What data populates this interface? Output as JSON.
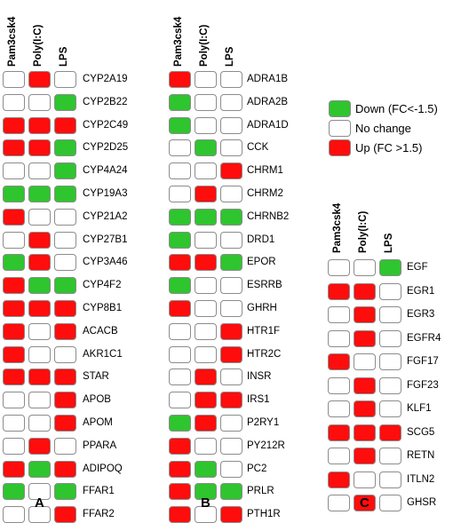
{
  "colors": {
    "down": "#2ec52e",
    "none": "#ffffff",
    "up": "#ff0d0d"
  },
  "legend": [
    {
      "state": "down",
      "label": "Down (FC<-1.5)"
    },
    {
      "state": "none",
      "label": "No change"
    },
    {
      "state": "up",
      "label": "Up (FC >1.5)"
    }
  ],
  "panels": [
    {
      "label": "A",
      "columns": [
        "Pam3csk4",
        "Poly(I:C)",
        "LPS"
      ],
      "rows": [
        {
          "gene": "CYP2A19",
          "states": [
            "none",
            "up",
            "none"
          ]
        },
        {
          "gene": "CYP2B22",
          "states": [
            "none",
            "none",
            "down"
          ]
        },
        {
          "gene": "CYP2C49",
          "states": [
            "up",
            "up",
            "up"
          ]
        },
        {
          "gene": "CYP2D25",
          "states": [
            "up",
            "up",
            "down"
          ]
        },
        {
          "gene": "CYP4A24",
          "states": [
            "none",
            "none",
            "down"
          ]
        },
        {
          "gene": "CYP19A3",
          "states": [
            "down",
            "down",
            "down"
          ]
        },
        {
          "gene": "CYP21A2",
          "states": [
            "up",
            "none",
            "none"
          ]
        },
        {
          "gene": "CYP27B1",
          "states": [
            "none",
            "up",
            "none"
          ]
        },
        {
          "gene": "CYP3A46",
          "states": [
            "down",
            "up",
            "none"
          ]
        },
        {
          "gene": "CYP4F2",
          "states": [
            "up",
            "down",
            "down"
          ]
        },
        {
          "gene": "CYP8B1",
          "states": [
            "up",
            "up",
            "up"
          ]
        },
        {
          "gene": "ACACB",
          "states": [
            "up",
            "none",
            "up"
          ]
        },
        {
          "gene": "AKR1C1",
          "states": [
            "up",
            "none",
            "none"
          ]
        },
        {
          "gene": "STAR",
          "states": [
            "up",
            "up",
            "up"
          ]
        },
        {
          "gene": "APOB",
          "states": [
            "none",
            "none",
            "up"
          ]
        },
        {
          "gene": "APOM",
          "states": [
            "none",
            "none",
            "up"
          ]
        },
        {
          "gene": "PPARA",
          "states": [
            "none",
            "up",
            "none"
          ]
        },
        {
          "gene": "ADIPOQ",
          "states": [
            "up",
            "down",
            "up"
          ]
        },
        {
          "gene": "FFAR1",
          "states": [
            "down",
            "none",
            "down"
          ]
        },
        {
          "gene": "FFAR2",
          "states": [
            "none",
            "none",
            "up"
          ]
        }
      ]
    },
    {
      "label": "B",
      "columns": [
        "Pam3csk4",
        "Poly(I:C)",
        "LPS"
      ],
      "rows": [
        {
          "gene": "ADRA1B",
          "states": [
            "up",
            "none",
            "none"
          ]
        },
        {
          "gene": "ADRA2B",
          "states": [
            "down",
            "none",
            "none"
          ]
        },
        {
          "gene": "ADRA1D",
          "states": [
            "down",
            "none",
            "none"
          ]
        },
        {
          "gene": "CCK",
          "states": [
            "none",
            "down",
            "none"
          ]
        },
        {
          "gene": "CHRM1",
          "states": [
            "none",
            "none",
            "up"
          ]
        },
        {
          "gene": "CHRM2",
          "states": [
            "none",
            "up",
            "none"
          ]
        },
        {
          "gene": "CHRNB2",
          "states": [
            "down",
            "down",
            "down"
          ]
        },
        {
          "gene": "DRD1",
          "states": [
            "down",
            "none",
            "none"
          ]
        },
        {
          "gene": "EPOR",
          "states": [
            "up",
            "up",
            "down"
          ]
        },
        {
          "gene": "ESRRB",
          "states": [
            "down",
            "none",
            "none"
          ]
        },
        {
          "gene": "GHRH",
          "states": [
            "up",
            "none",
            "none"
          ]
        },
        {
          "gene": "HTR1F",
          "states": [
            "none",
            "none",
            "up"
          ]
        },
        {
          "gene": "HTR2C",
          "states": [
            "none",
            "none",
            "up"
          ]
        },
        {
          "gene": "INSR",
          "states": [
            "none",
            "up",
            "none"
          ]
        },
        {
          "gene": "IRS1",
          "states": [
            "none",
            "up",
            "up"
          ]
        },
        {
          "gene": "P2RY1",
          "states": [
            "down",
            "up",
            "none"
          ]
        },
        {
          "gene": "PY212R",
          "states": [
            "up",
            "none",
            "none"
          ]
        },
        {
          "gene": "PC2",
          "states": [
            "up",
            "down",
            "none"
          ]
        },
        {
          "gene": "PRLR",
          "states": [
            "up",
            "down",
            "down"
          ]
        },
        {
          "gene": "PTH1R",
          "states": [
            "up",
            "none",
            "up"
          ]
        }
      ]
    },
    {
      "label": "C",
      "columns": [
        "Pam3csk4",
        "Poly(I:C)",
        "LPS"
      ],
      "rows": [
        {
          "gene": "EGF",
          "states": [
            "none",
            "none",
            "down"
          ]
        },
        {
          "gene": "EGR1",
          "states": [
            "up",
            "up",
            "none"
          ]
        },
        {
          "gene": "EGR3",
          "states": [
            "none",
            "up",
            "none"
          ]
        },
        {
          "gene": "EGFR4",
          "states": [
            "none",
            "up",
            "none"
          ]
        },
        {
          "gene": "FGF17",
          "states": [
            "up",
            "none",
            "none"
          ]
        },
        {
          "gene": "FGF23",
          "states": [
            "none",
            "up",
            "none"
          ]
        },
        {
          "gene": "KLF1",
          "states": [
            "none",
            "up",
            "none"
          ]
        },
        {
          "gene": "SCG5",
          "states": [
            "up",
            "up",
            "up"
          ]
        },
        {
          "gene": "RETN",
          "states": [
            "none",
            "up",
            "none"
          ]
        },
        {
          "gene": "ITLN2",
          "states": [
            "up",
            "none",
            "none"
          ]
        },
        {
          "gene": "GHSR",
          "states": [
            "none",
            "up",
            "none"
          ]
        }
      ]
    }
  ]
}
